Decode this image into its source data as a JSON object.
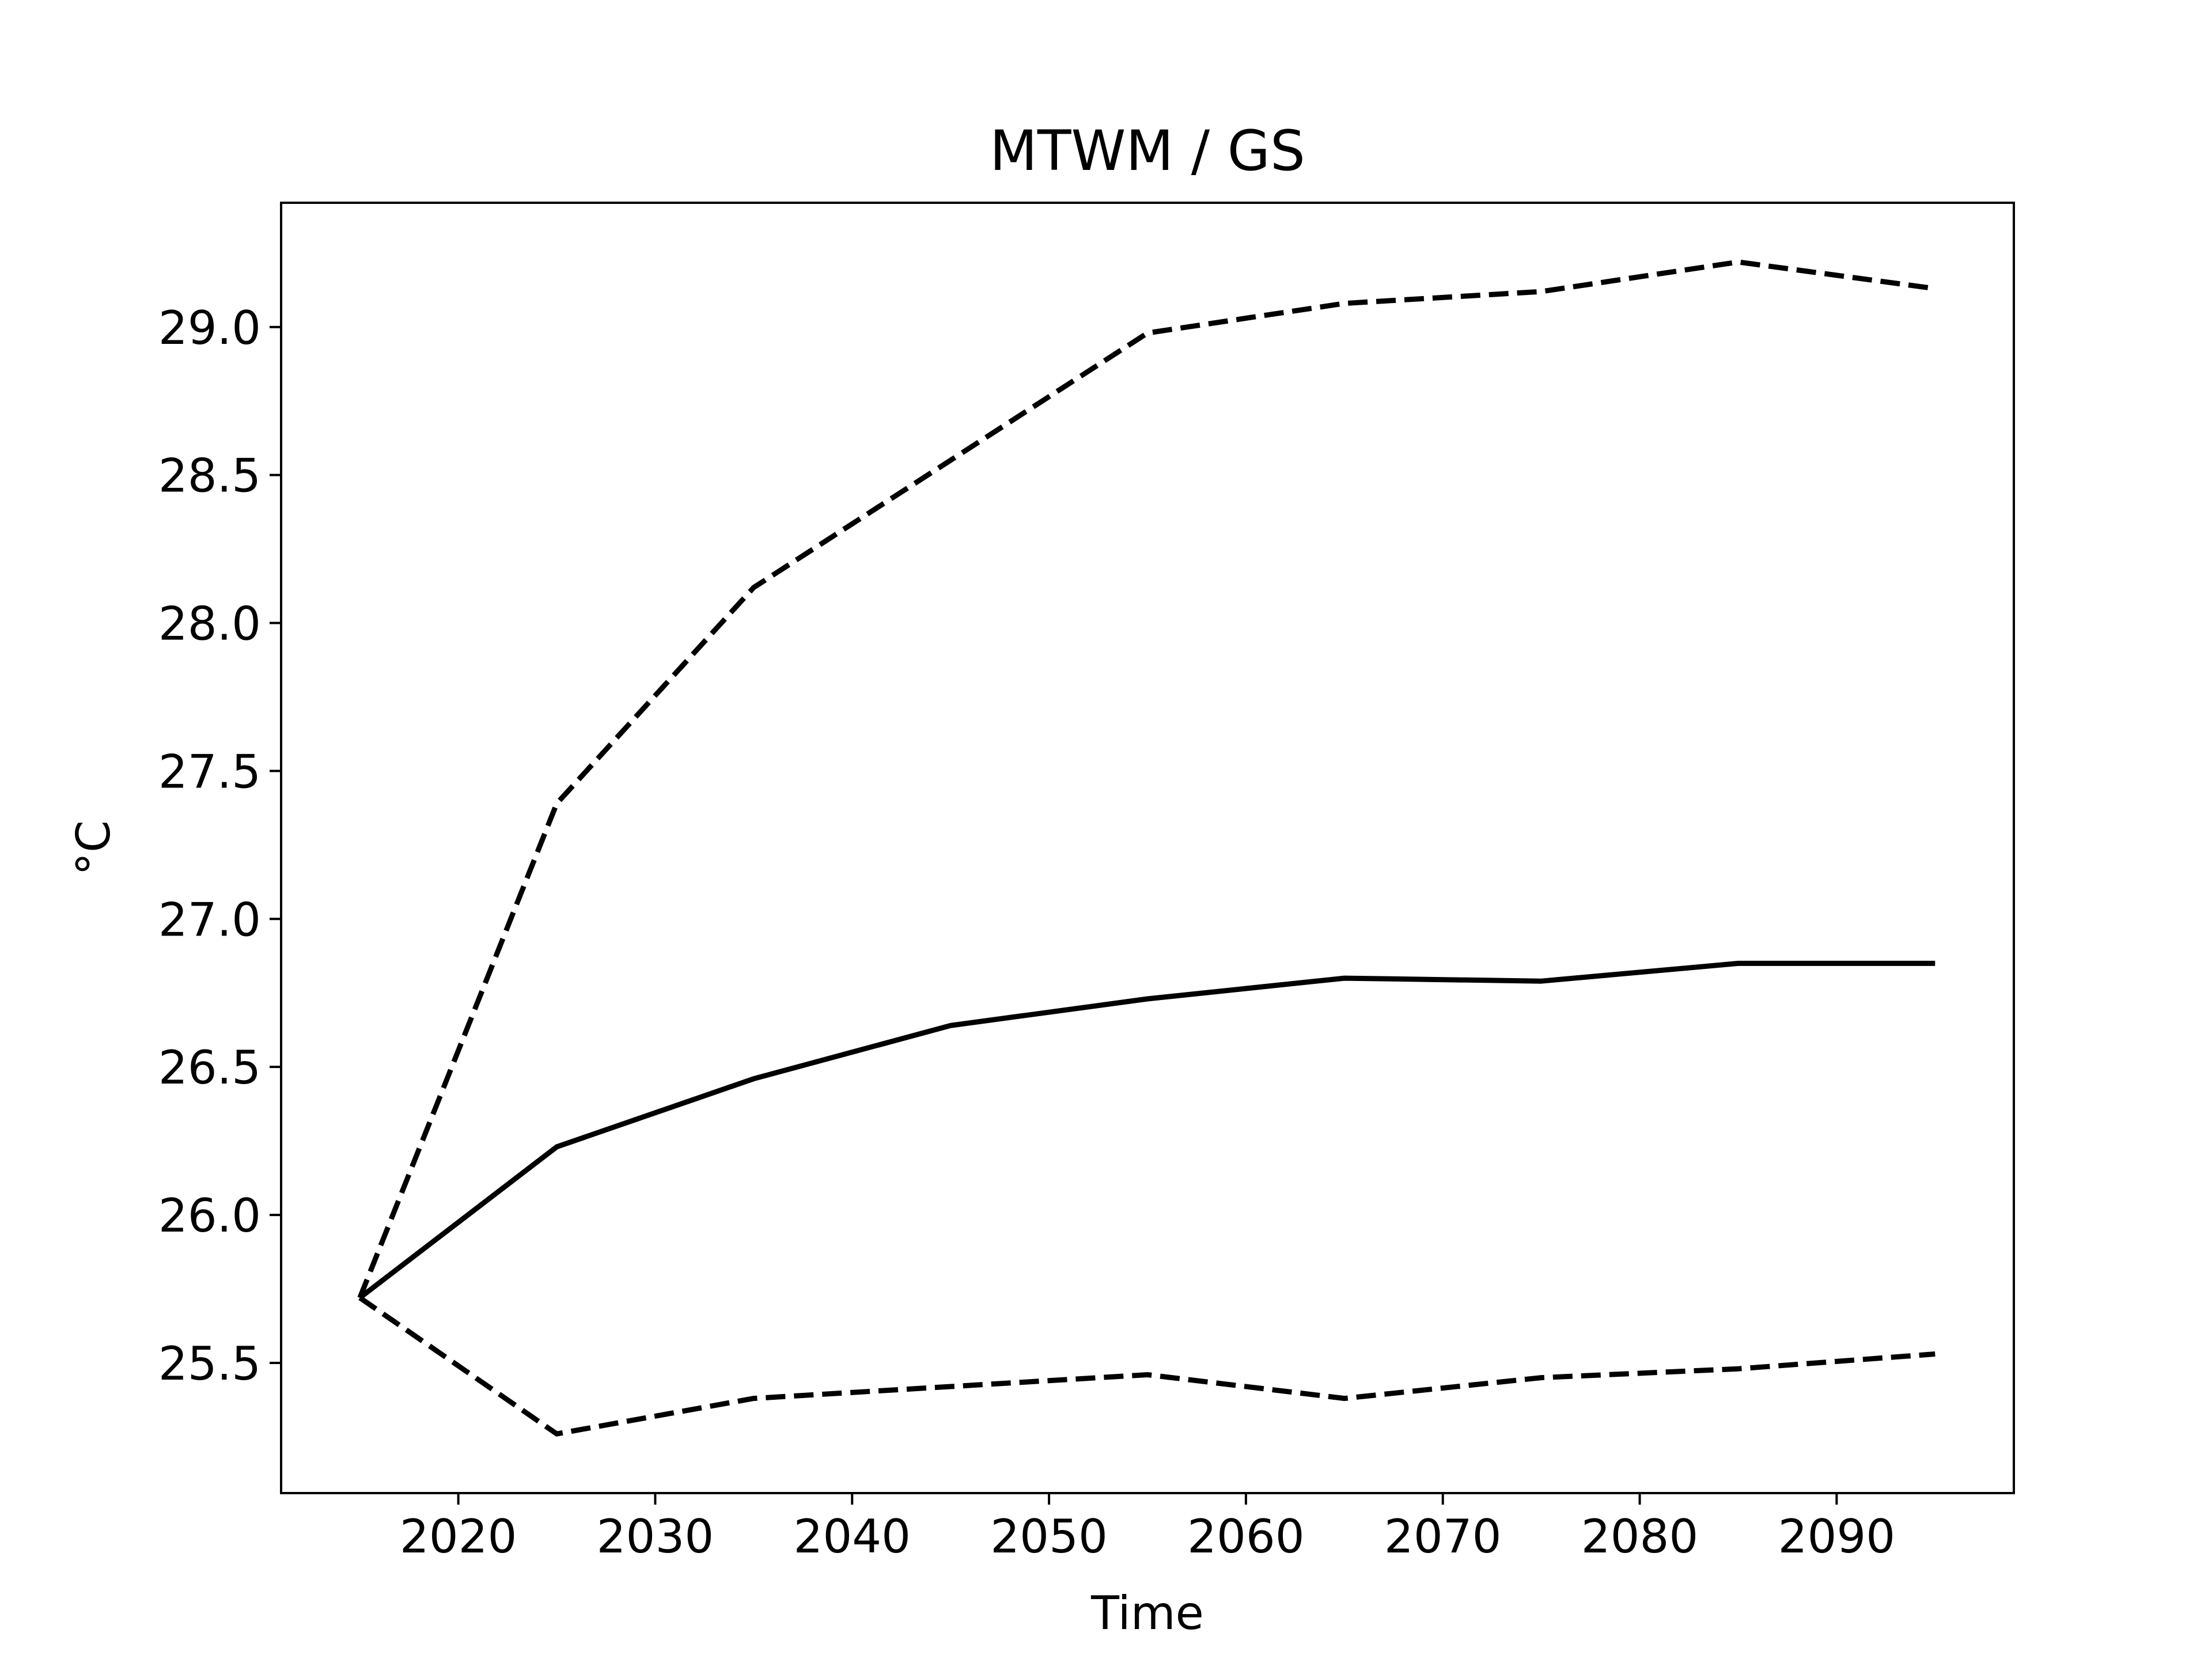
{
  "chart_data": {
    "type": "line",
    "title": "MTWM / GS",
    "xlabel": "Time",
    "ylabel": "°C",
    "xlim": [
      2011,
      2099
    ],
    "ylim": [
      25.06,
      29.42
    ],
    "xticks": [
      2020,
      2030,
      2040,
      2050,
      2060,
      2070,
      2080,
      2090
    ],
    "yticks": [
      25.5,
      26.0,
      26.5,
      27.0,
      27.5,
      28.0,
      28.5,
      29.0
    ],
    "grid": false,
    "legend": "none",
    "x": [
      2015,
      2025,
      2035,
      2045,
      2055,
      2065,
      2075,
      2085,
      2095
    ],
    "series": [
      {
        "style": "dashed",
        "color": "#000000",
        "values": [
          25.72,
          27.39,
          28.12,
          28.55,
          28.98,
          29.08,
          29.12,
          29.22,
          29.13
        ]
      },
      {
        "style": "solid",
        "color": "#000000",
        "values": [
          25.72,
          26.23,
          26.46,
          26.64,
          26.73,
          26.8,
          26.79,
          26.85,
          26.85
        ]
      },
      {
        "style": "dashed",
        "color": "#000000",
        "values": [
          25.72,
          25.26,
          25.38,
          25.42,
          25.46,
          25.38,
          25.45,
          25.48,
          25.53
        ]
      }
    ]
  }
}
